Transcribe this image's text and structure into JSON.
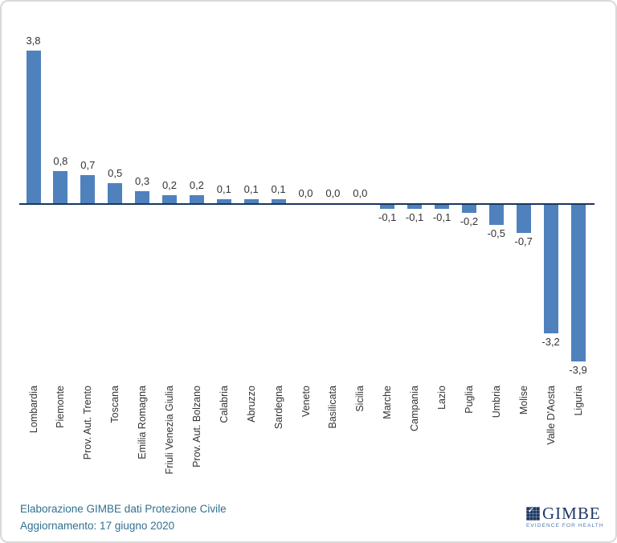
{
  "chart_data": {
    "type": "bar",
    "title": "",
    "xlabel": "",
    "ylabel": "",
    "categories": [
      "Lombardia",
      "Piemonte",
      "Prov. Aut. Trento",
      "Toscana",
      "Emilia Romagna",
      "Friuli Venezia Giulia",
      "Prov. Aut. Bolzano",
      "Calabria",
      "Abruzzo",
      "Sardegna",
      "Veneto",
      "Basilicata",
      "Sicilia",
      "Marche",
      "Campania",
      "Lazio",
      "Puglia",
      "Umbria",
      "Molise",
      "Valle D'Aosta",
      "Liguria"
    ],
    "values": [
      3.8,
      0.8,
      0.7,
      0.5,
      0.3,
      0.2,
      0.2,
      0.1,
      0.1,
      0.1,
      0.0,
      0.0,
      0.0,
      -0.1,
      -0.1,
      -0.1,
      -0.2,
      -0.5,
      -0.7,
      -3.2,
      -3.9
    ],
    "value_labels": [
      "3,8",
      "0,8",
      "0,7",
      "0,5",
      "0,3",
      "0,2",
      "0,2",
      "0,1",
      "0,1",
      "0,1",
      "0,0",
      "0,0",
      "0,0",
      "-0,1",
      "-0,1",
      "-0,1",
      "-0,2",
      "-0,5",
      "-0,7",
      "-3,2",
      "-3,9"
    ],
    "ylim": [
      -4.2,
      4.0
    ],
    "grid": false,
    "legend": "none",
    "bar_color": "#4F81BD",
    "axis_color": "#17375E"
  },
  "footer": {
    "source_line": "Elaborazione GIMBE dati Protezione Civile",
    "update_line": "Aggiornamento: 17 giugno 2020",
    "text_color": "#31708F"
  },
  "logo": {
    "name": "GIMBE",
    "tagline": "EVIDENCE FOR HEALTH",
    "check_icon": "check-icon",
    "navy": "#1F3864",
    "tagline_color": "#4F77AC"
  }
}
